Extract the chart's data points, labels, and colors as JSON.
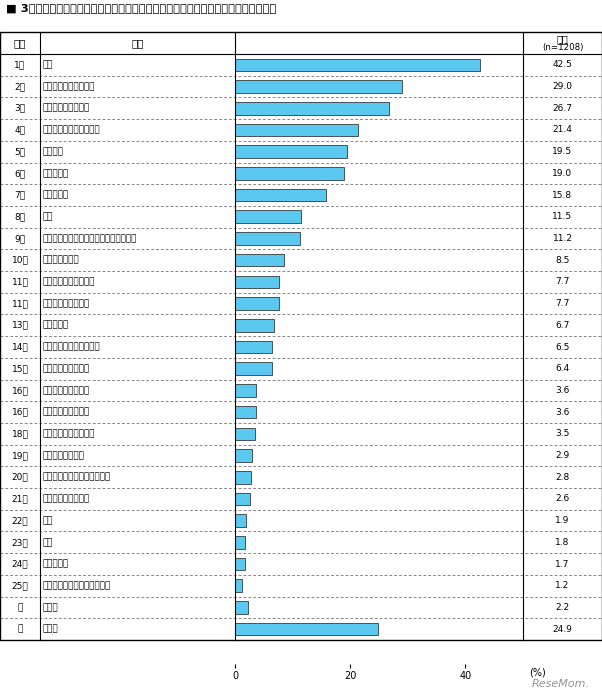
{
  "title": "■ 3年後に進学希望率が上昇すると考えられる分野＜専門学校＞（全体／複数回答）",
  "n_label": "(n=1208)",
  "ranks": [
    "1位",
    "2位",
    "3位",
    "4位",
    "5位",
    "6位",
    "7位",
    "8位",
    "9位",
    "10位",
    "11位",
    "11位",
    "13位",
    "14位",
    "15位",
    "16位",
    "16位",
    "18位",
    "19位",
    "20位",
    "21位",
    "22位",
    "23位",
    "24位",
    "25位",
    "－",
    "－"
  ],
  "labels": [
    "看護",
    "医療関係（看護以外）",
    "公務員・法律・政治",
    "美容・理容・ヘアメイク",
    "福祉関係",
    "保育・教育",
    "調理・製菒",
    "栄養",
    "ゲーム・マルチメディア・コンピュータ",
    "健康・スポーツ",
    "経済・経営・ビジネス",
    "旅行・観光・ホテル",
    "動物・植物",
    "メイク・ネイル・エステ",
    "自動車・航空・宇宙",
    "音楽・イベント関係",
    "ファッション・和裁",
    "デザイン・写真・芸術",
    "電気・電子・化学",
    "建築・土木・インテリア関係",
    "自然・環境・バイオ",
    "機械",
    "芸能",
    "国際・語学",
    "マスコミ・編集・広告・放送",
    "その他",
    "無回答"
  ],
  "values": [
    42.5,
    29.0,
    26.7,
    21.4,
    19.5,
    19.0,
    15.8,
    11.5,
    11.2,
    8.5,
    7.7,
    7.7,
    6.7,
    6.5,
    6.4,
    3.6,
    3.6,
    3.5,
    2.9,
    2.8,
    2.6,
    1.9,
    1.8,
    1.7,
    1.2,
    2.2,
    24.9
  ],
  "bar_color": "#5BC8F0",
  "bar_edge_color": "#1a1a1a",
  "header_rank": "順位",
  "header_label": "分野",
  "header_value": "全体",
  "xlim": [
    0,
    50
  ],
  "xtick_positions": [
    0,
    20,
    40
  ],
  "xtick_labels": [
    "0",
    "20",
    "40"
  ],
  "xlabel": "(%)",
  "background_color": "#ffffff"
}
